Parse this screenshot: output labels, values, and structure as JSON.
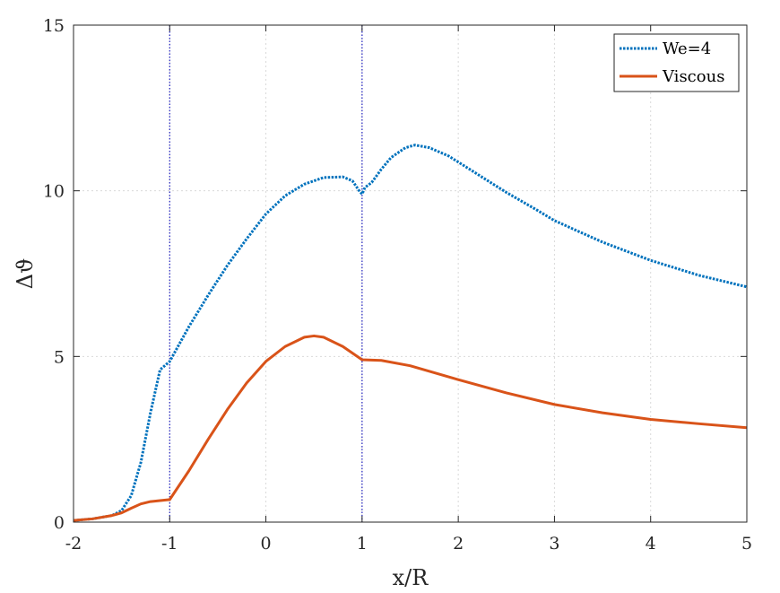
{
  "chart_data": {
    "type": "line",
    "xlabel": "x/R",
    "ylabel": "Δϑ",
    "xlim": [
      -2,
      5
    ],
    "ylim": [
      0,
      15
    ],
    "xticks": [
      -2,
      -1,
      0,
      1,
      2,
      3,
      4,
      5
    ],
    "yticks": [
      0,
      5,
      10,
      15
    ],
    "grid": true,
    "legend_position": "top-right",
    "reference_lines_x": [
      -1,
      1
    ],
    "series": [
      {
        "name": "We=4",
        "color": "#0072BD",
        "style": "dotted",
        "points": [
          [
            -2.0,
            0.05
          ],
          [
            -1.8,
            0.1
          ],
          [
            -1.6,
            0.2
          ],
          [
            -1.5,
            0.35
          ],
          [
            -1.4,
            0.8
          ],
          [
            -1.3,
            1.8
          ],
          [
            -1.2,
            3.3
          ],
          [
            -1.1,
            4.6
          ],
          [
            -1.0,
            4.85
          ],
          [
            -0.8,
            5.9
          ],
          [
            -0.6,
            6.85
          ],
          [
            -0.4,
            7.75
          ],
          [
            -0.2,
            8.55
          ],
          [
            0.0,
            9.3
          ],
          [
            0.2,
            9.85
          ],
          [
            0.4,
            10.2
          ],
          [
            0.6,
            10.4
          ],
          [
            0.8,
            10.42
          ],
          [
            0.9,
            10.3
          ],
          [
            0.97,
            10.0
          ],
          [
            1.0,
            9.9
          ],
          [
            1.03,
            10.1
          ],
          [
            1.1,
            10.25
          ],
          [
            1.2,
            10.65
          ],
          [
            1.3,
            11.0
          ],
          [
            1.45,
            11.3
          ],
          [
            1.55,
            11.38
          ],
          [
            1.7,
            11.3
          ],
          [
            1.9,
            11.05
          ],
          [
            2.2,
            10.5
          ],
          [
            2.5,
            9.95
          ],
          [
            2.8,
            9.45
          ],
          [
            3.0,
            9.1
          ],
          [
            3.5,
            8.45
          ],
          [
            4.0,
            7.9
          ],
          [
            4.5,
            7.45
          ],
          [
            5.0,
            7.1
          ]
        ]
      },
      {
        "name": "Viscous",
        "color": "#D95319",
        "style": "solid",
        "points": [
          [
            -2.0,
            0.05
          ],
          [
            -1.8,
            0.1
          ],
          [
            -1.6,
            0.2
          ],
          [
            -1.5,
            0.28
          ],
          [
            -1.4,
            0.42
          ],
          [
            -1.3,
            0.55
          ],
          [
            -1.2,
            0.62
          ],
          [
            -1.0,
            0.68
          ],
          [
            -0.8,
            1.55
          ],
          [
            -0.6,
            2.5
          ],
          [
            -0.4,
            3.4
          ],
          [
            -0.2,
            4.2
          ],
          [
            0.0,
            4.85
          ],
          [
            0.2,
            5.3
          ],
          [
            0.4,
            5.58
          ],
          [
            0.5,
            5.62
          ],
          [
            0.6,
            5.58
          ],
          [
            0.8,
            5.3
          ],
          [
            1.0,
            4.9
          ],
          [
            1.2,
            4.88
          ],
          [
            1.5,
            4.72
          ],
          [
            2.0,
            4.3
          ],
          [
            2.5,
            3.9
          ],
          [
            3.0,
            3.55
          ],
          [
            3.5,
            3.3
          ],
          [
            4.0,
            3.1
          ],
          [
            4.5,
            2.97
          ],
          [
            5.0,
            2.85
          ]
        ]
      }
    ]
  }
}
